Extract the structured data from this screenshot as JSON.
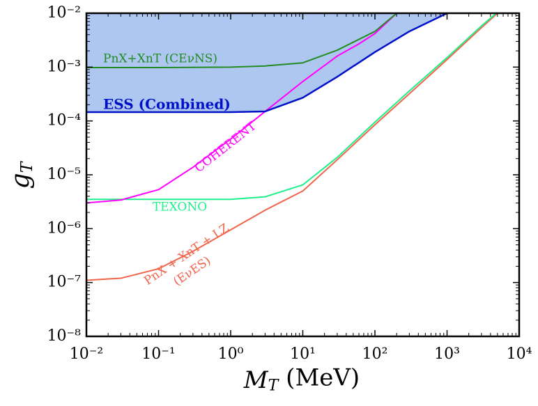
{
  "chart_data": {
    "type": "line",
    "xlabel": "MT (MeV)",
    "ylabel": "gT",
    "xscale": "log",
    "yscale": "log",
    "xlim": [
      0.01,
      10000
    ],
    "ylim": [
      1e-08,
      0.01
    ],
    "xticks": [
      {
        "value": 0.01,
        "label": "10⁻²"
      },
      {
        "value": 0.1,
        "label": "10⁻¹"
      },
      {
        "value": 1,
        "label": "10⁰"
      },
      {
        "value": 10,
        "label": "10¹"
      },
      {
        "value": 100,
        "label": "10²"
      },
      {
        "value": 1000,
        "label": "10³"
      },
      {
        "value": 10000,
        "label": "10⁴"
      }
    ],
    "yticks": [
      {
        "value": 1e-08,
        "label": "10⁻⁸"
      },
      {
        "value": 1e-07,
        "label": "10⁻⁷"
      },
      {
        "value": 1e-06,
        "label": "10⁻⁶"
      },
      {
        "value": 1e-05,
        "label": "10⁻⁵"
      },
      {
        "value": 0.0001,
        "label": "10⁻⁴"
      },
      {
        "value": 0.001,
        "label": "10⁻³"
      },
      {
        "value": 0.01,
        "label": "10⁻²"
      }
    ],
    "fill_color": "#aec7f0",
    "series": [
      {
        "color": "#f0644a",
        "x": [
          0.01,
          0.03,
          0.1,
          0.3,
          1,
          3,
          10,
          30,
          100,
          300,
          1000,
          3000,
          5000
        ],
        "values": [
          1.1e-07,
          1.2e-07,
          1.8e-07,
          3.8e-07,
          9.5e-07,
          2.2e-06,
          5e-06,
          1.9e-05,
          8.5e-05,
          0.00032,
          0.00138,
          0.0054,
          0.01
        ]
      },
      {
        "color": "#1ef08a",
        "x": [
          0.01,
          0.1,
          1,
          3,
          10,
          30,
          100,
          300,
          1000,
          3000,
          4800
        ],
        "values": [
          3.5e-06,
          3.5e-06,
          3.5e-06,
          3.9e-06,
          6.5e-06,
          2.1e-05,
          9.5e-05,
          0.00036,
          0.0015,
          0.0058,
          0.01
        ]
      },
      {
        "color": "#ff00ff",
        "x": [
          0.01,
          0.03,
          0.1,
          0.3,
          1,
          3,
          10,
          30,
          60,
          100,
          200
        ],
        "values": [
          3e-06,
          3.4e-06,
          5.3e-06,
          1.38e-05,
          4.6e-05,
          0.00015,
          0.00054,
          0.0016,
          0.0027,
          0.0042,
          0.01
        ]
      },
      {
        "color": "#228b22",
        "x": [
          0.01,
          0.1,
          1,
          3,
          10,
          30,
          100,
          200
        ],
        "values": [
          0.00098,
          0.00098,
          0.001,
          0.00105,
          0.0012,
          0.00206,
          0.0046,
          0.01
        ]
      },
      {
        "color": "#0010c8",
        "fill": true,
        "x": [
          0.01,
          0.1,
          1,
          3,
          10,
          30,
          100,
          300,
          1000
        ],
        "values": [
          0.000146,
          0.000146,
          0.000146,
          0.00015,
          0.00027,
          0.00066,
          0.0019,
          0.0046,
          0.01
        ]
      }
    ],
    "annotations": [
      "PnX+XnT  (CEνNS)",
      "ESS (Combined)",
      "COHERENT",
      "TEXONO",
      "PnX + XnT + LZ",
      "(EνES)"
    ]
  }
}
